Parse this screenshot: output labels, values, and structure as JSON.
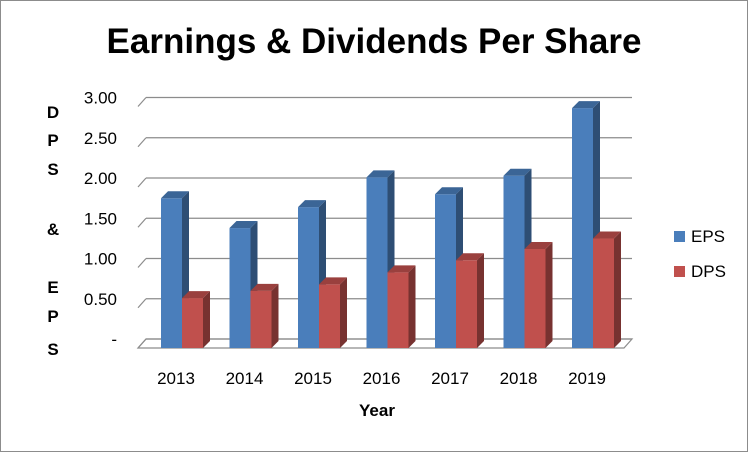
{
  "chart_data": {
    "type": "bar",
    "title": "Earnings & Dividends Per Share",
    "xlabel": "Year",
    "ylabel": "DPS & EPS",
    "ylabel_chars": [
      "D",
      "P",
      "S",
      "&",
      "E",
      "P",
      "S"
    ],
    "categories": [
      "2013",
      "2014",
      "2015",
      "2016",
      "2017",
      "2018",
      "2019"
    ],
    "series": [
      {
        "name": "EPS",
        "values": [
          1.86,
          1.49,
          1.75,
          2.12,
          1.91,
          2.14,
          2.98
        ],
        "color": "#4a7ebb"
      },
      {
        "name": "DPS",
        "values": [
          0.62,
          0.71,
          0.79,
          0.94,
          1.09,
          1.23,
          1.36
        ],
        "color": "#c0504d"
      }
    ],
    "ylim": [
      0,
      3.0
    ],
    "yticks": [
      {
        "value": 0,
        "label": "-"
      },
      {
        "value": 0.5,
        "label": "0.50"
      },
      {
        "value": 1.0,
        "label": "1.00"
      },
      {
        "value": 1.5,
        "label": "1.50"
      },
      {
        "value": 2.0,
        "label": "2.00"
      },
      {
        "value": 2.5,
        "label": "2.50"
      },
      {
        "value": 3.0,
        "label": "3.00"
      }
    ],
    "grid": true,
    "legend_position": "right",
    "style": "3d-clustered-column"
  }
}
